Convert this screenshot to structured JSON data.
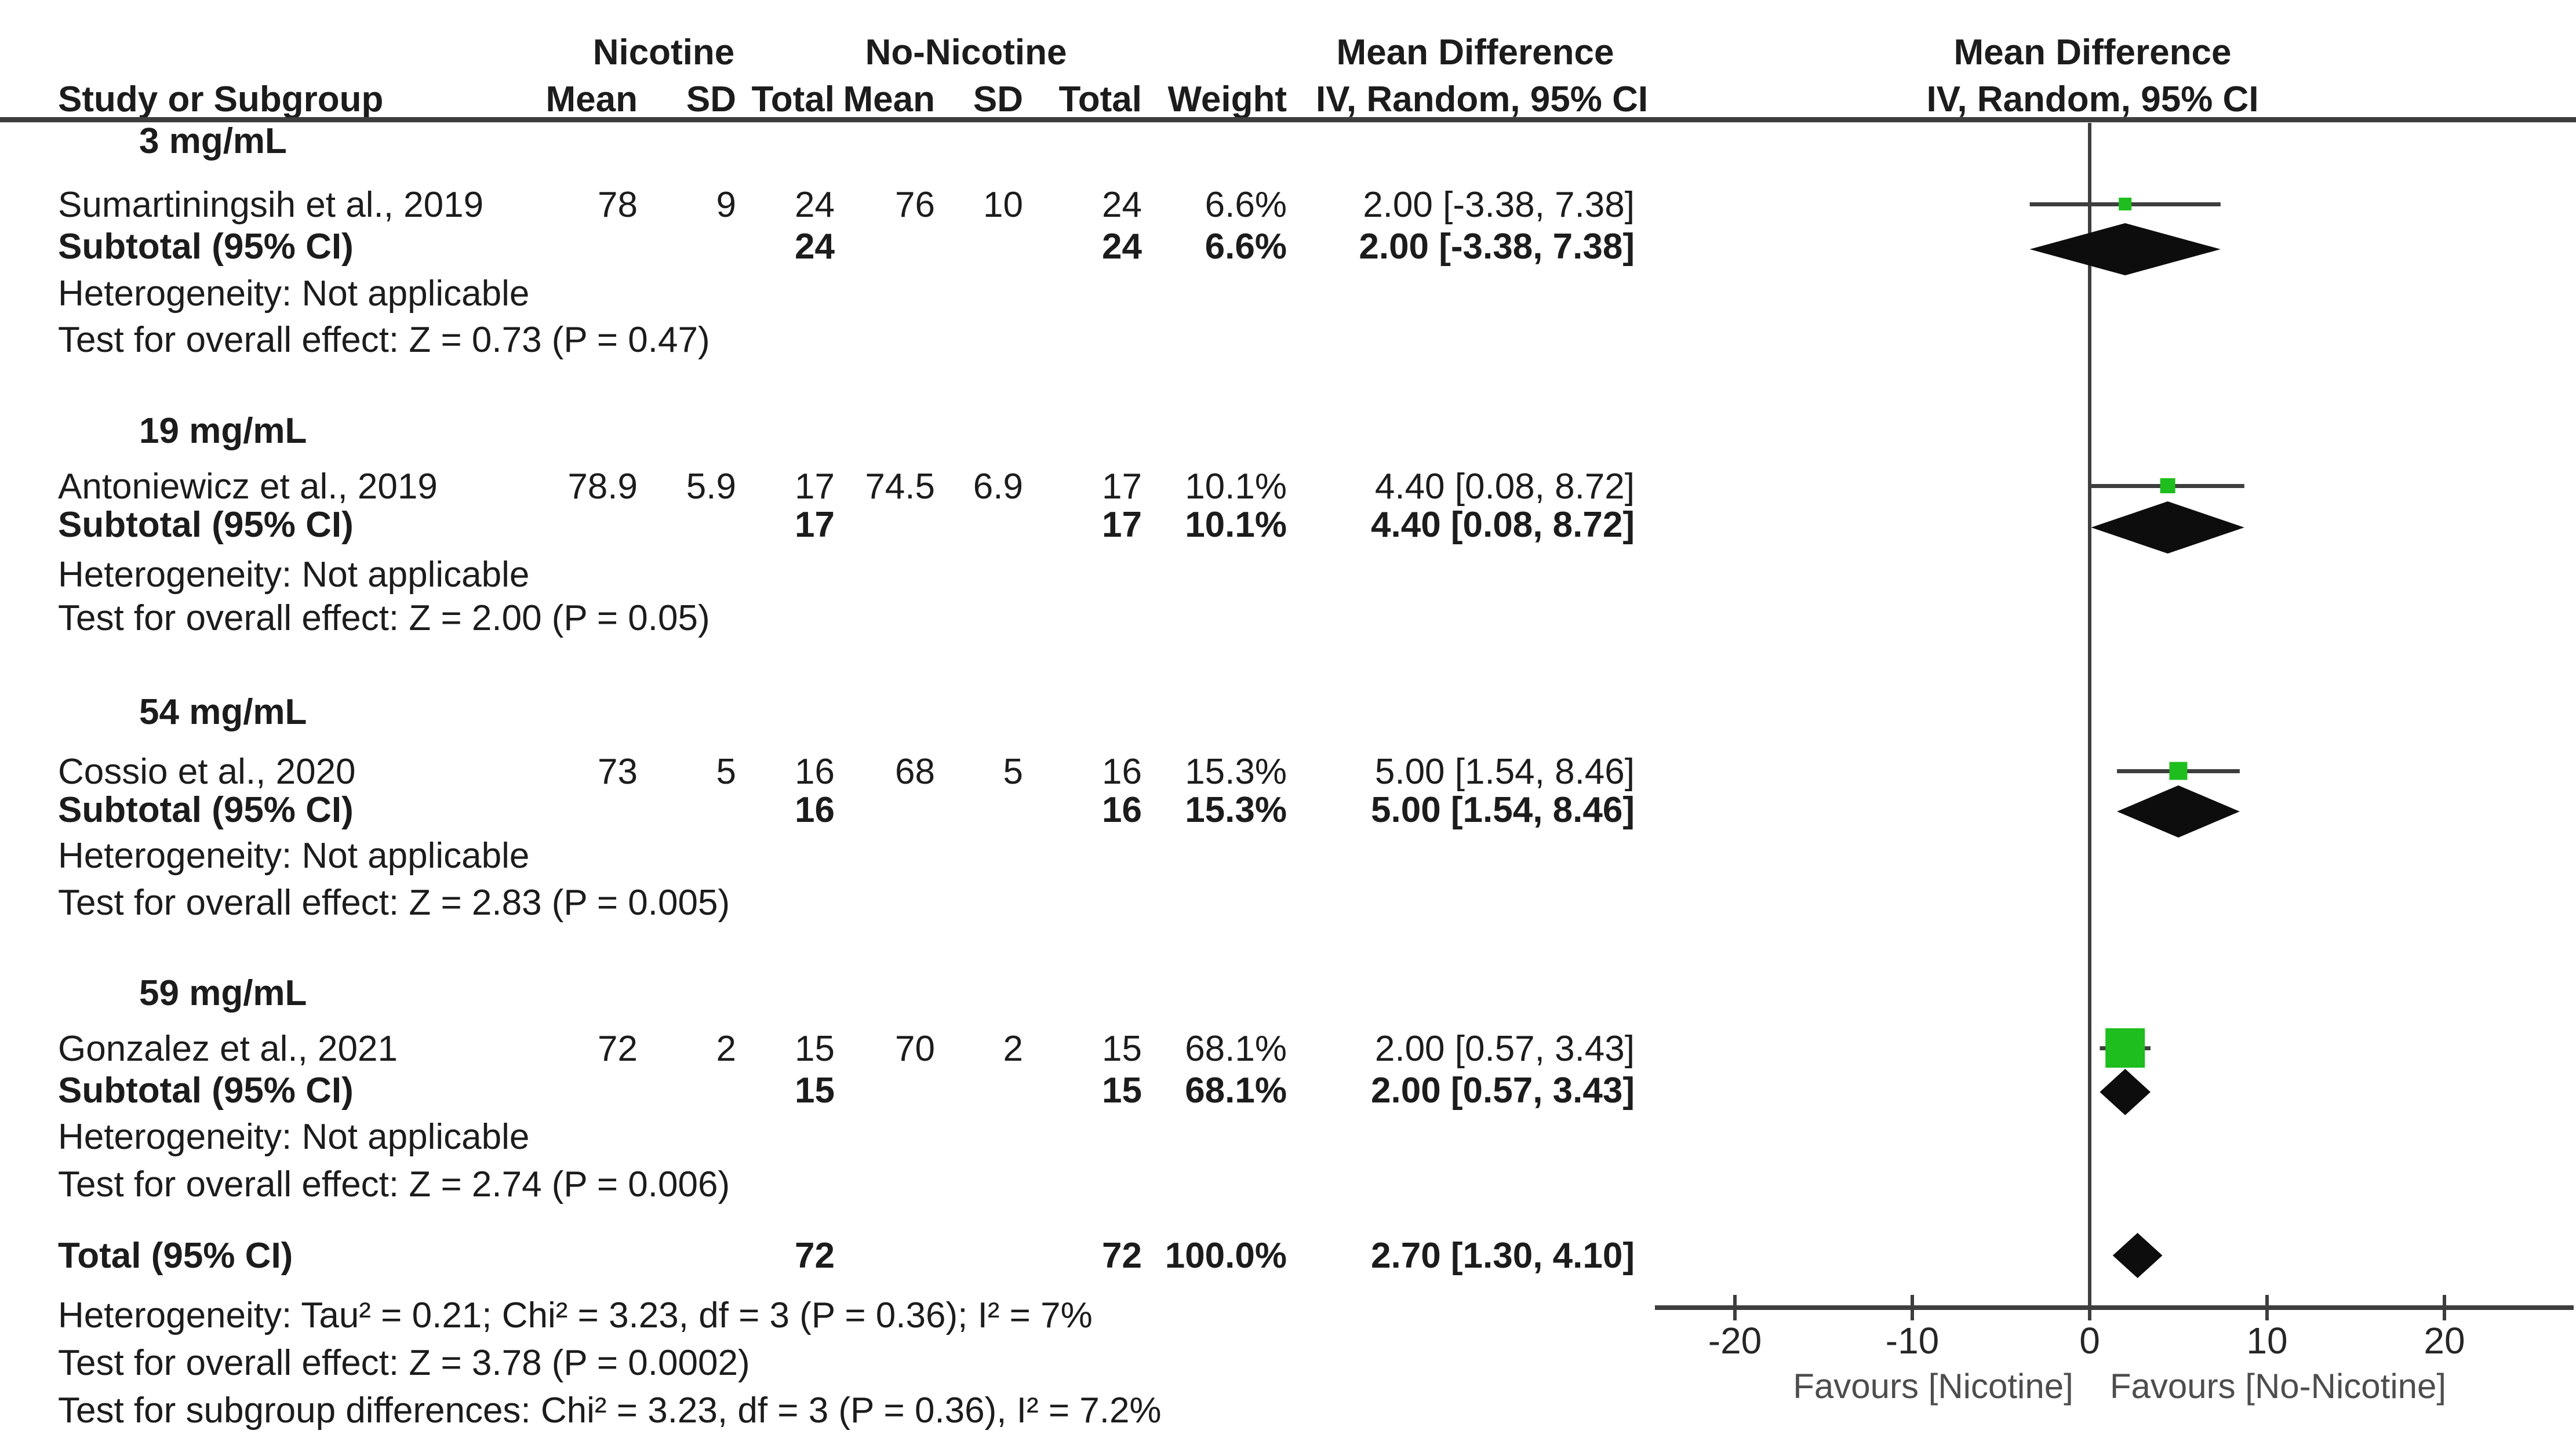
{
  "header": {
    "nicotine_group": "Nicotine",
    "no_nicotine_group": "No-Nicotine",
    "mean_difference": "Mean Difference",
    "study": "Study or Subgroup",
    "mean": "Mean",
    "sd": "SD",
    "total": "Total",
    "weight": "Weight",
    "ci_method": "IV, Random, 95% CI",
    "plot_title": "Mean Difference",
    "plot_subtitle": "IV, Random, 95% CI"
  },
  "groups": [
    {
      "label": "3 mg/mL",
      "study": {
        "name": "Sumartiningsih et al., 2019",
        "mean1": "78",
        "sd1": "9",
        "total1": "24",
        "mean2": "76",
        "sd2": "10",
        "total2": "24",
        "weight": "6.6%",
        "ci": "2.00 [-3.38, 7.38]"
      },
      "subtotal": {
        "label": "Subtotal (95% CI)",
        "total1": "24",
        "total2": "24",
        "weight": "6.6%",
        "ci": "2.00 [-3.38, 7.38]"
      },
      "heterogeneity": "Heterogeneity: Not applicable",
      "test": "Test for overall effect: Z = 0.73 (P = 0.47)"
    },
    {
      "label": "19 mg/mL",
      "study": {
        "name": "Antoniewicz et al., 2019",
        "mean1": "78.9",
        "sd1": "5.9",
        "total1": "17",
        "mean2": "74.5",
        "sd2": "6.9",
        "total2": "17",
        "weight": "10.1%",
        "ci": "4.40 [0.08, 8.72]"
      },
      "subtotal": {
        "label": "Subtotal (95% CI)",
        "total1": "17",
        "total2": "17",
        "weight": "10.1%",
        "ci": "4.40 [0.08, 8.72]"
      },
      "heterogeneity": "Heterogeneity: Not applicable",
      "test": "Test for overall effect: Z = 2.00 (P = 0.05)"
    },
    {
      "label": "54 mg/mL",
      "study": {
        "name": "Cossio et al., 2020",
        "mean1": "73",
        "sd1": "5",
        "total1": "16",
        "mean2": "68",
        "sd2": "5",
        "total2": "16",
        "weight": "15.3%",
        "ci": "5.00 [1.54, 8.46]"
      },
      "subtotal": {
        "label": "Subtotal (95% CI)",
        "total1": "16",
        "total2": "16",
        "weight": "15.3%",
        "ci": "5.00 [1.54, 8.46]"
      },
      "heterogeneity": "Heterogeneity: Not applicable",
      "test": "Test for overall effect: Z = 2.83 (P = 0.005)"
    },
    {
      "label": "59 mg/mL",
      "study": {
        "name": "Gonzalez et al., 2021",
        "mean1": "72",
        "sd1": "2",
        "total1": "15",
        "mean2": "70",
        "sd2": "2",
        "total2": "15",
        "weight": "68.1%",
        "ci": "2.00 [0.57, 3.43]"
      },
      "subtotal": {
        "label": "Subtotal (95% CI)",
        "total1": "15",
        "total2": "15",
        "weight": "68.1%",
        "ci": "2.00 [0.57, 3.43]"
      },
      "heterogeneity": "Heterogeneity: Not applicable",
      "test": "Test for overall effect: Z = 2.74 (P = 0.006)"
    }
  ],
  "total_row": {
    "label": "Total (95% CI)",
    "total1": "72",
    "total2": "72",
    "weight": "100.0%",
    "ci": "2.70 [1.30, 4.10]"
  },
  "footer": {
    "heterogeneity": "Heterogeneity: Tau² = 0.21; Chi² = 3.23, df = 3 (P = 0.36); I² = 7%",
    "overall": "Test for overall effect: Z = 3.78 (P = 0.0002)",
    "subgroup": "Test for subgroup differences: Chi² = 3.23, df = 3 (P = 0.36), I² = 7.2%"
  },
  "axis": {
    "ticks": [
      -20,
      -10,
      0,
      10,
      20
    ],
    "favours_left": "Favours [Nicotine]",
    "favours_right": "Favours [No-Nicotine]"
  },
  "colors": {
    "marker_green": "#1ebe1e",
    "line": "#3e3e3e",
    "diamond": "#0d0d0d"
  },
  "chart_data": {
    "type": "forest",
    "effect_measure": "Mean Difference, IV, Random, 95% CI",
    "xlim": [
      -25,
      25
    ],
    "x_ticks": [
      -20,
      -10,
      0,
      10,
      20
    ],
    "x_label_left": "Favours [Nicotine]",
    "x_label_right": "Favours [No-Nicotine]",
    "studies": [
      {
        "name": "Sumartiningsih et al., 2019",
        "group": "3 mg/mL",
        "md": 2.0,
        "ci": [
          -3.38,
          7.38
        ],
        "weight": 6.6
      },
      {
        "name": "Antoniewicz et al., 2019",
        "group": "19 mg/mL",
        "md": 4.4,
        "ci": [
          0.08,
          8.72
        ],
        "weight": 10.1
      },
      {
        "name": "Cossio et al., 2020",
        "group": "54 mg/mL",
        "md": 5.0,
        "ci": [
          1.54,
          8.46
        ],
        "weight": 15.3
      },
      {
        "name": "Gonzalez et al., 2021",
        "group": "59 mg/mL",
        "md": 2.0,
        "ci": [
          0.57,
          3.43
        ],
        "weight": 68.1
      }
    ],
    "subtotals": [
      {
        "group": "3 mg/mL",
        "md": 2.0,
        "ci": [
          -3.38,
          7.38
        ]
      },
      {
        "group": "19 mg/mL",
        "md": 4.4,
        "ci": [
          0.08,
          8.72
        ]
      },
      {
        "group": "54 mg/mL",
        "md": 5.0,
        "ci": [
          1.54,
          8.46
        ]
      },
      {
        "group": "59 mg/mL",
        "md": 2.0,
        "ci": [
          0.57,
          3.43
        ]
      }
    ],
    "total": {
      "md": 2.7,
      "ci": [
        1.3,
        4.1
      ]
    }
  }
}
